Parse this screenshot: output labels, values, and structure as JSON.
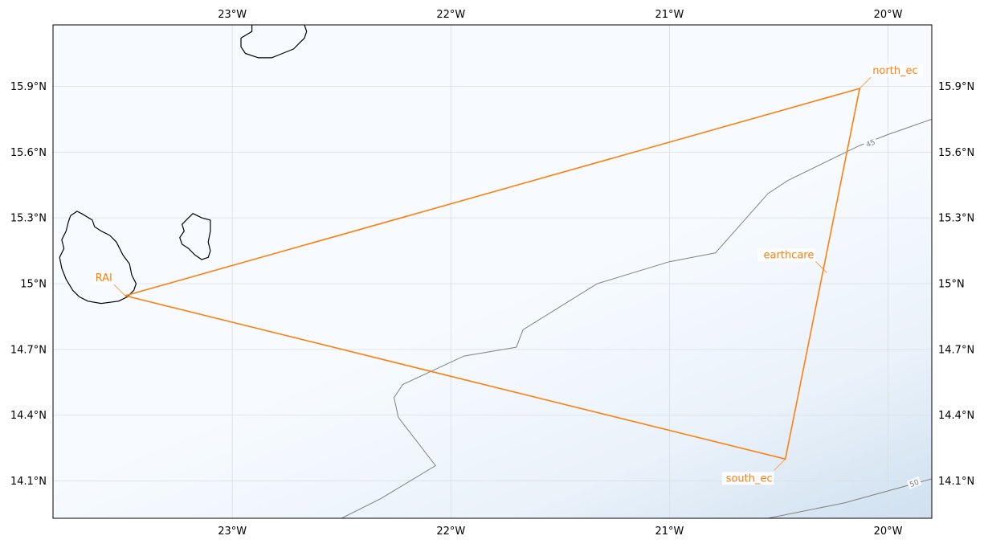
{
  "chart_data": {
    "type": "map",
    "projection": "PlateCarree",
    "extent": {
      "lon": [
        -23.82,
        -19.8
      ],
      "lat": [
        13.93,
        16.18
      ]
    },
    "grid": true,
    "x_ticks": [
      {
        "value": -23,
        "label": "23°W"
      },
      {
        "value": -22,
        "label": "22°W"
      },
      {
        "value": -21,
        "label": "21°W"
      },
      {
        "value": -20,
        "label": "20°W"
      }
    ],
    "y_ticks": [
      {
        "value": 14.1,
        "label": "14.1°N"
      },
      {
        "value": 14.4,
        "label": "14.4°N"
      },
      {
        "value": 14.7,
        "label": "14.7°N"
      },
      {
        "value": 15.0,
        "label": "15°N"
      },
      {
        "value": 15.3,
        "label": "15.3°N"
      },
      {
        "value": 15.6,
        "label": "15.6°N"
      },
      {
        "value": 15.9,
        "label": "15.9°N"
      }
    ],
    "flight_track": {
      "color": "#ff7f0e",
      "points": [
        {
          "lon": -23.49,
          "lat": 14.945
        },
        {
          "lon": -20.13,
          "lat": 15.89
        },
        {
          "lon": -20.47,
          "lat": 14.2
        },
        {
          "lon": -23.49,
          "lat": 14.945
        }
      ]
    },
    "waypoints": [
      {
        "name": "RAI",
        "lon": -23.49,
        "lat": 14.945,
        "anchor": "left"
      },
      {
        "name": "north_ec",
        "lon": -20.13,
        "lat": 15.89,
        "anchor": "right"
      },
      {
        "name": "south_ec",
        "lon": -20.47,
        "lat": 14.2,
        "anchor": "left"
      },
      {
        "name": "earthcare",
        "lon": -20.28,
        "lat": 15.05,
        "anchor": "left"
      }
    ],
    "contours": [
      {
        "level": "45",
        "color": "#808080",
        "points": [
          [
            -22.5,
            13.93
          ],
          [
            -22.32,
            14.02
          ],
          [
            -22.07,
            14.17
          ],
          [
            -22.24,
            14.39
          ],
          [
            -22.26,
            14.48
          ],
          [
            -22.22,
            14.54
          ],
          [
            -21.94,
            14.67
          ],
          [
            -21.7,
            14.71
          ],
          [
            -21.67,
            14.79
          ],
          [
            -21.33,
            15.0
          ],
          [
            -21.0,
            15.1
          ],
          [
            -20.79,
            15.14
          ],
          [
            -20.55,
            15.41
          ],
          [
            -20.46,
            15.47
          ],
          [
            -20.13,
            15.63
          ],
          [
            -20.0,
            15.68
          ],
          [
            -19.8,
            15.75
          ]
        ],
        "label_at": [
          -20.08,
          15.64
        ]
      },
      {
        "level": "50",
        "color": "#808080",
        "points": [
          [
            -20.55,
            13.93
          ],
          [
            -20.2,
            14.0
          ],
          [
            -19.8,
            14.11
          ]
        ],
        "label_at": [
          -19.88,
          14.09
        ]
      }
    ],
    "islands": [
      {
        "name": "",
        "points": [
          [
            -23.74,
            15.31
          ],
          [
            -23.71,
            15.33
          ],
          [
            -23.69,
            15.32
          ],
          [
            -23.64,
            15.29
          ],
          [
            -23.63,
            15.26
          ],
          [
            -23.6,
            15.24
          ],
          [
            -23.56,
            15.22
          ],
          [
            -23.53,
            15.19
          ],
          [
            -23.5,
            15.13
          ],
          [
            -23.47,
            15.09
          ],
          [
            -23.46,
            15.04
          ],
          [
            -23.44,
            15.0
          ],
          [
            -23.45,
            14.97
          ],
          [
            -23.48,
            14.94
          ],
          [
            -23.52,
            14.92
          ],
          [
            -23.6,
            14.91
          ],
          [
            -23.66,
            14.92
          ],
          [
            -23.7,
            14.94
          ],
          [
            -23.73,
            14.97
          ],
          [
            -23.76,
            15.02
          ],
          [
            -23.78,
            15.07
          ],
          [
            -23.79,
            15.12
          ],
          [
            -23.77,
            15.16
          ],
          [
            -23.78,
            15.2
          ],
          [
            -23.76,
            15.24
          ],
          [
            -23.75,
            15.28
          ],
          [
            -23.74,
            15.31
          ]
        ]
      },
      {
        "name": "",
        "points": [
          [
            -23.2,
            15.3
          ],
          [
            -23.18,
            15.32
          ],
          [
            -23.14,
            15.3
          ],
          [
            -23.1,
            15.29
          ],
          [
            -23.1,
            15.24
          ],
          [
            -23.11,
            15.19
          ],
          [
            -23.1,
            15.15
          ],
          [
            -23.11,
            15.12
          ],
          [
            -23.14,
            15.11
          ],
          [
            -23.17,
            15.13
          ],
          [
            -23.2,
            15.16
          ],
          [
            -23.23,
            15.18
          ],
          [
            -23.24,
            15.21
          ],
          [
            -23.22,
            15.24
          ],
          [
            -23.23,
            15.27
          ],
          [
            -23.2,
            15.3
          ]
        ]
      },
      {
        "name": "",
        "points": [
          [
            -22.91,
            16.18
          ],
          [
            -22.91,
            16.15
          ],
          [
            -22.96,
            16.12
          ],
          [
            -22.96,
            16.08
          ],
          [
            -22.94,
            16.05
          ],
          [
            -22.88,
            16.03
          ],
          [
            -22.82,
            16.03
          ],
          [
            -22.77,
            16.05
          ],
          [
            -22.72,
            16.07
          ],
          [
            -22.69,
            16.1
          ],
          [
            -22.67,
            16.12
          ],
          [
            -22.66,
            16.15
          ],
          [
            -22.67,
            16.18
          ]
        ]
      }
    ]
  }
}
